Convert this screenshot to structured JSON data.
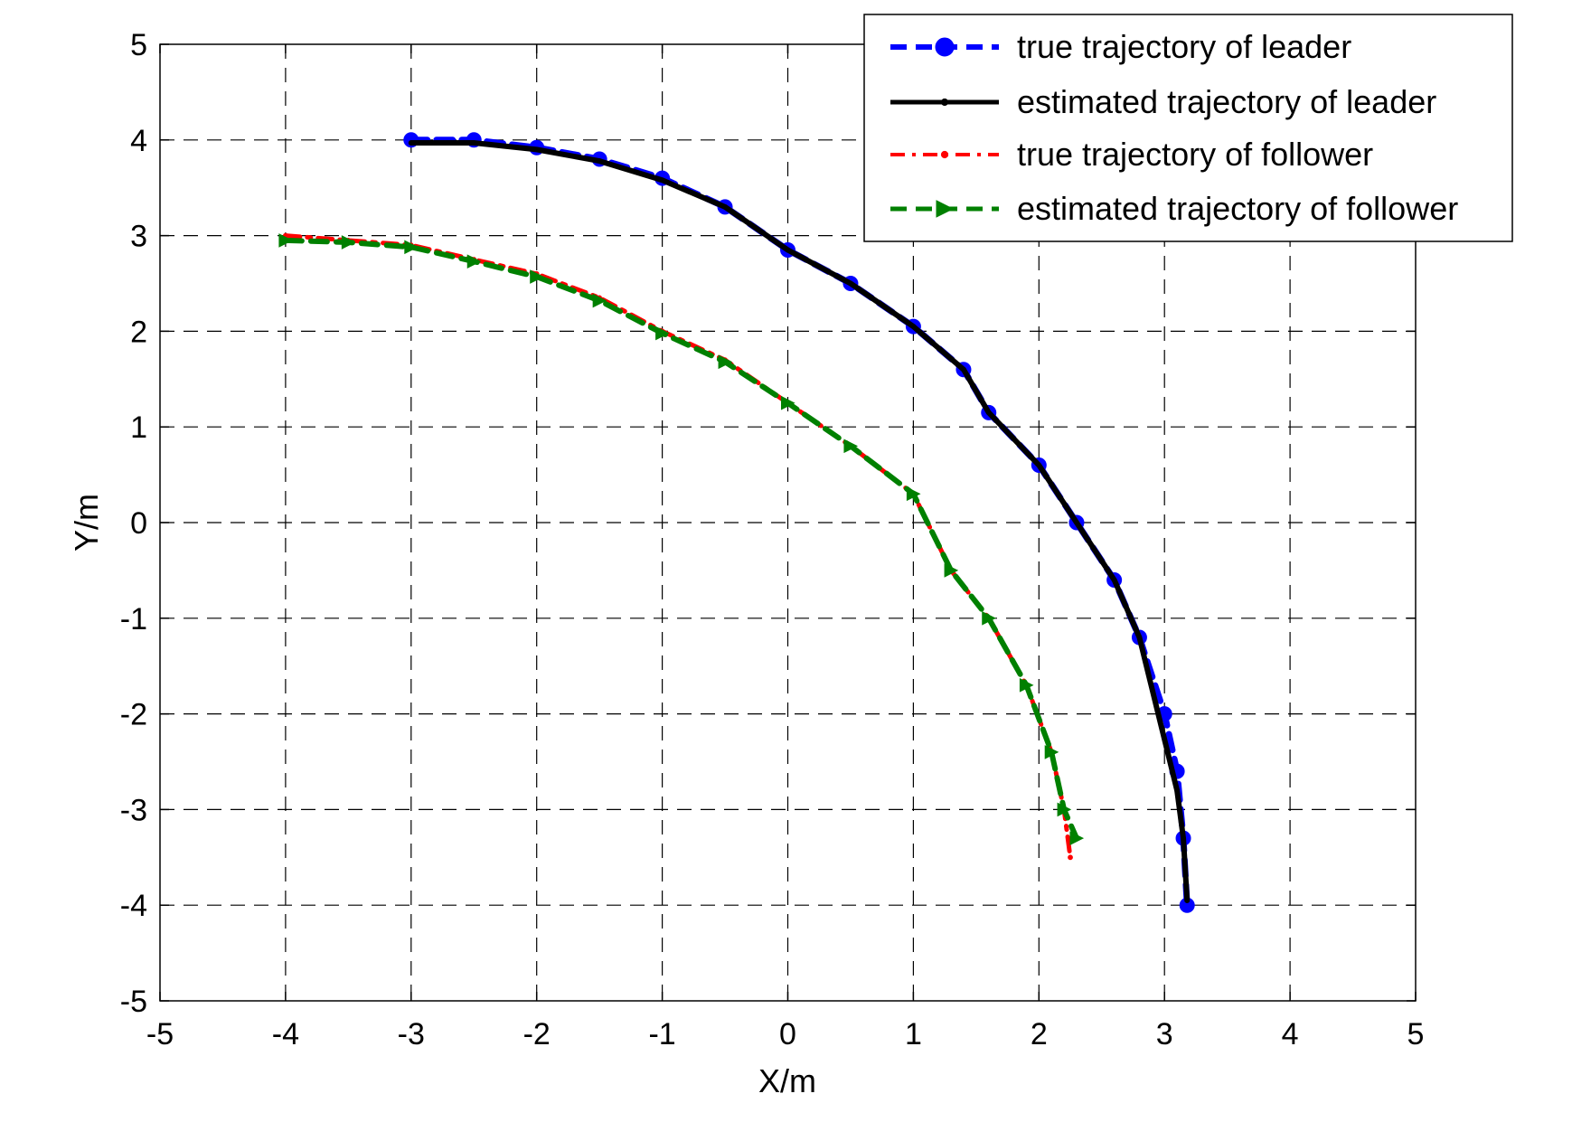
{
  "chart_data": {
    "type": "line",
    "xlabel": "X/m",
    "ylabel": "Y/m",
    "xlim": [
      -5,
      5
    ],
    "ylim": [
      -5,
      5
    ],
    "xticks": [
      -5,
      -4,
      -3,
      -2,
      -1,
      0,
      1,
      2,
      3,
      4,
      5
    ],
    "yticks": [
      -5,
      -4,
      -3,
      -2,
      -1,
      0,
      1,
      2,
      3,
      4,
      5
    ],
    "xtick_labels": [
      "-5",
      "-4",
      "-3",
      "-2",
      "-1",
      "0",
      "1",
      "2",
      "3",
      "4",
      "5"
    ],
    "ytick_labels": [
      "-5",
      "-4",
      "-3",
      "-2",
      "-1",
      "0",
      "1",
      "2",
      "3",
      "4",
      "5"
    ],
    "grid": true,
    "legend_position": "top-right",
    "series": [
      {
        "name": "true trajectory of leader",
        "color": "#0000ff",
        "line_style": "dashed",
        "marker": "circle",
        "x": [
          -3.0,
          -2.5,
          -2.0,
          -1.5,
          -1.0,
          -0.5,
          0.0,
          0.5,
          1.0,
          1.4,
          1.6,
          2.0,
          2.3,
          2.6,
          2.8,
          3.0,
          3.1,
          3.15,
          3.18
        ],
        "y": [
          4.0,
          4.0,
          3.92,
          3.8,
          3.6,
          3.3,
          2.85,
          2.5,
          2.05,
          1.6,
          1.15,
          0.6,
          0.0,
          -0.6,
          -1.2,
          -2.0,
          -2.6,
          -3.3,
          -4.0
        ]
      },
      {
        "name": "estimated trajectory of leader",
        "color": "#000000",
        "line_style": "solid",
        "marker": "dot",
        "x": [
          -3.0,
          -2.5,
          -2.0,
          -1.5,
          -1.0,
          -0.5,
          0.0,
          0.5,
          1.0,
          1.4,
          1.6,
          2.0,
          2.3,
          2.6,
          2.8,
          2.95,
          3.1,
          3.15,
          3.18
        ],
        "y": [
          3.97,
          3.97,
          3.9,
          3.78,
          3.58,
          3.3,
          2.85,
          2.5,
          2.05,
          1.6,
          1.15,
          0.6,
          0.0,
          -0.6,
          -1.2,
          -2.0,
          -2.8,
          -3.3,
          -3.95
        ]
      },
      {
        "name": "true trajectory of follower",
        "color": "#ff0000",
        "line_style": "dash-dot",
        "marker": "dot",
        "x": [
          -4.0,
          -3.5,
          -3.0,
          -2.5,
          -2.0,
          -1.5,
          -1.0,
          -0.5,
          0.0,
          0.5,
          1.0,
          1.3,
          1.6,
          1.9,
          2.1,
          2.2,
          2.25
        ],
        "y": [
          3.0,
          2.95,
          2.9,
          2.75,
          2.6,
          2.35,
          2.0,
          1.7,
          1.25,
          0.8,
          0.3,
          -0.5,
          -1.0,
          -1.7,
          -2.4,
          -3.0,
          -3.5
        ]
      },
      {
        "name": "estimated trajectory of follower",
        "color": "#008000",
        "line_style": "dashed",
        "marker": "triangle-right",
        "x": [
          -4.0,
          -3.5,
          -3.0,
          -2.5,
          -2.0,
          -1.5,
          -1.0,
          -0.5,
          0.0,
          0.5,
          1.0,
          1.3,
          1.6,
          1.9,
          2.1,
          2.2,
          2.3
        ],
        "y": [
          2.95,
          2.93,
          2.88,
          2.73,
          2.57,
          2.32,
          1.98,
          1.68,
          1.25,
          0.8,
          0.3,
          -0.5,
          -1.0,
          -1.7,
          -2.4,
          -3.0,
          -3.3
        ]
      }
    ]
  }
}
